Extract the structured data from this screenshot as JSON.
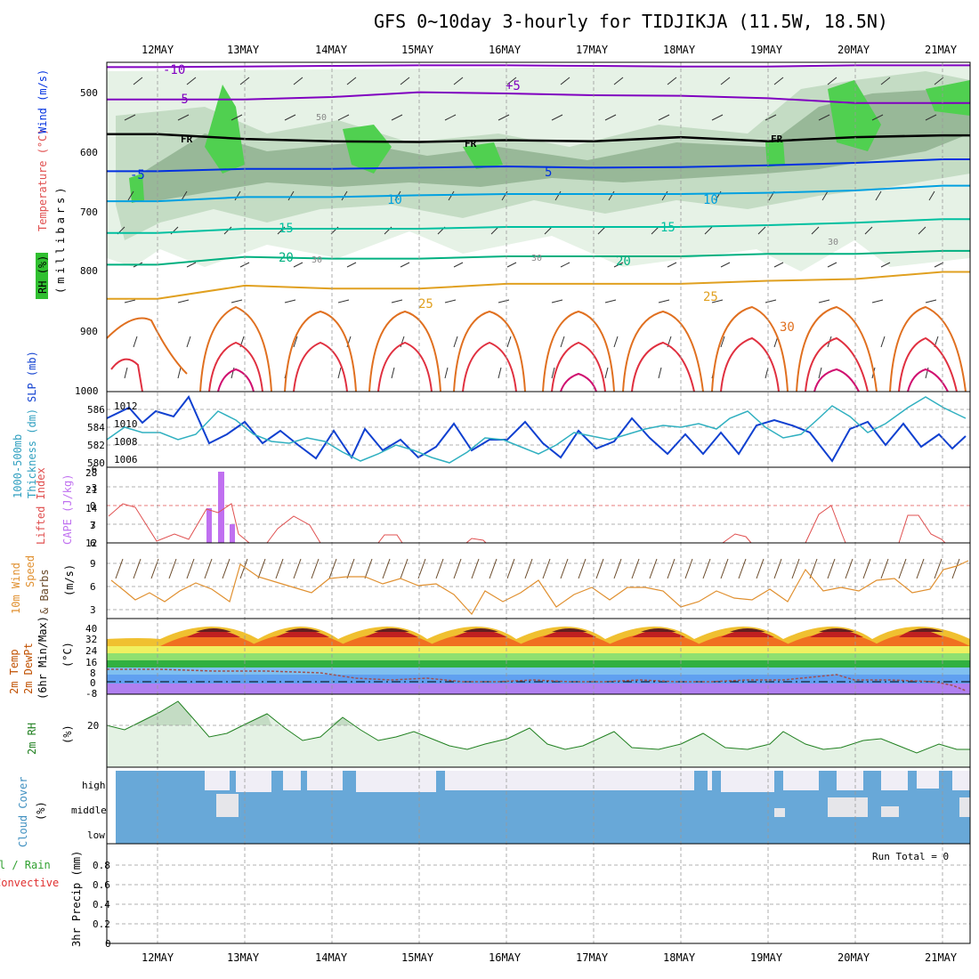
{
  "title": "GFS 0~10day 3-hourly for TIDJIKJA (11.5W, 18.5N)",
  "dates": [
    "12MAY",
    "13MAY",
    "14MAY",
    "15MAY",
    "16MAY",
    "17MAY",
    "18MAY",
    "19MAY",
    "20MAY",
    "21MAY"
  ],
  "panels": {
    "upper": {
      "axis_labels": [
        "Wind (m/s)",
        "Temperature (°C)",
        "RH (%)",
        "(millibars)"
      ],
      "pressure_ticks": [
        500,
        600,
        700,
        800,
        900,
        1000
      ],
      "isotherm_labels": [
        "-10",
        "-5",
        "+5",
        "-5",
        "5",
        "10",
        "10",
        "15",
        "15",
        "20",
        "20",
        "25",
        "25",
        "30"
      ],
      "freezing_labels": [
        "FR",
        "FR",
        "FR"
      ],
      "rh_labels": [
        "50",
        "30",
        "30",
        "30"
      ]
    },
    "thickness": {
      "axis_labels": [
        "1000-500mb",
        "Thickness (dm)",
        "SLP (mb)"
      ],
      "left_ticks": [
        "586",
        "584",
        "582",
        "580"
      ],
      "right_ticks": [
        "1012",
        "1010",
        "1008",
        "1006"
      ]
    },
    "cape": {
      "axis_labels": [
        "Lifted Index",
        "CAPE (J/kg)"
      ],
      "li_ticks": [
        "-6",
        "-3",
        "0",
        "3",
        "6"
      ],
      "cape_ticks": [
        "28",
        "21",
        "14",
        "7",
        "12"
      ]
    },
    "wind10m": {
      "axis_labels": [
        "10m Wind",
        "Speed",
        "& Barbs",
        "(m/s)"
      ],
      "ticks": [
        "9",
        "6",
        "3"
      ]
    },
    "temp2m": {
      "axis_labels": [
        "2m Temp",
        "2m DewPt",
        "(6hr Min/Max)",
        "(°C)"
      ],
      "ticks": [
        "40",
        "32",
        "24",
        "16",
        "8",
        "0",
        "-8"
      ]
    },
    "rh2m": {
      "axis_labels": [
        "2m RH",
        "(%)"
      ],
      "ticks": [
        "20"
      ]
    },
    "cloud": {
      "axis_labels": [
        "Cloud Cover",
        "(%)"
      ],
      "levels": [
        "high",
        "middle",
        "low"
      ]
    },
    "precip": {
      "axis_labels": [
        "Total / Rain",
        "Convective",
        "3hr Precip (mm)"
      ],
      "ticks": [
        "0.8",
        "0.6",
        "0.4",
        "0.2",
        "0"
      ],
      "run_total": "Run Total = 0"
    }
  },
  "chart_data": [
    {
      "type": "line",
      "name": "upper-air",
      "ylabel": "(millibars)",
      "ylim": [
        1000,
        450
      ],
      "x": [
        "12MAY",
        "13MAY",
        "14MAY",
        "15MAY",
        "16MAY",
        "17MAY",
        "18MAY",
        "19MAY",
        "20MAY",
        "21MAY"
      ],
      "series": [
        {
          "name": "-10",
          "color": "#8000c0",
          "values": [
            458,
            457,
            456,
            455,
            455,
            456,
            457,
            457,
            455,
            455
          ]
        },
        {
          "name": "-5",
          "color": "#8000c0",
          "values": [
            512,
            512,
            508,
            500,
            502,
            505,
            506,
            510,
            518,
            518
          ]
        },
        {
          "name": "FR",
          "color": "#000000",
          "values": [
            570,
            578,
            582,
            583,
            580,
            582,
            575,
            582,
            575,
            572
          ]
        },
        {
          "name": "-5",
          "color": "#0030e0",
          "values": [
            632,
            628,
            628,
            626,
            624,
            626,
            625,
            622,
            618,
            612
          ]
        },
        {
          "name": "10",
          "color": "#00a0e0",
          "values": [
            682,
            675,
            675,
            672,
            670,
            670,
            670,
            668,
            664,
            656
          ]
        },
        {
          "name": "15",
          "color": "#00c0a0",
          "values": [
            735,
            728,
            728,
            728,
            725,
            725,
            725,
            722,
            718,
            712
          ]
        },
        {
          "name": "20",
          "color": "#00b080",
          "values": [
            788,
            775,
            778,
            778,
            774,
            774,
            774,
            770,
            770,
            765
          ]
        },
        {
          "name": "25",
          "color": "#e0a020",
          "values": [
            845,
            823,
            828,
            828,
            820,
            820,
            820,
            815,
            812,
            800
          ]
        }
      ]
    },
    {
      "type": "line",
      "name": "thickness-slp",
      "ylabel": "SLP (mb)",
      "x": [
        "12MAY",
        "13MAY",
        "14MAY",
        "15MAY",
        "16MAY",
        "17MAY",
        "18MAY",
        "19MAY",
        "20MAY",
        "21MAY"
      ],
      "series": [
        {
          "name": "SLP (mb)",
          "color": "#1040d0",
          "values": [
            1011.5,
            1010.5,
            1009.5,
            1008,
            1009,
            1008,
            1008,
            1009.5,
            1009,
            1008.5
          ]
        },
        {
          "name": "1000-500mb Thickness (dm)",
          "color": "#30b0c0",
          "values": [
            583.5,
            584,
            582,
            580.5,
            582,
            582.5,
            583.5,
            584.5,
            585.5,
            586
          ]
        }
      ]
    },
    {
      "type": "bar",
      "name": "cape-li",
      "ylabel": "CAPE (J/kg)",
      "categories": [
        "12MAY 15Z",
        "12MAY 18Z",
        "12MAY 21Z"
      ],
      "values": [
        14,
        24,
        7
      ],
      "li_series": {
        "name": "Lifted Index",
        "x": [
          "11MAY 18Z",
          "12MAY 00Z",
          "12MAY 06Z",
          "12MAY 12Z",
          "12MAY 18Z",
          "13MAY 00Z",
          "13MAY 18Z",
          "14MAY 18Z",
          "15MAY 18Z",
          "18MAY 12Z",
          "19MAY 18Z",
          "20MAY 15Z"
        ],
        "values": [
          1,
          0,
          5.5,
          5,
          1.5,
          0,
          5.7,
          2.5,
          5.5,
          5.5,
          0,
          2
        ]
      }
    },
    {
      "type": "line",
      "name": "10m-wind",
      "ylabel": "(m/s)",
      "ylim": [
        2,
        10
      ],
      "x": [
        "12MAY",
        "13MAY",
        "14MAY",
        "15MAY",
        "16MAY",
        "17MAY",
        "18MAY",
        "19MAY",
        "20MAY",
        "21MAY"
      ],
      "series": [
        {
          "name": "Speed",
          "color": "#e09030",
          "values": [
            5,
            5.5,
            6.5,
            6.5,
            6,
            5,
            4,
            5,
            6,
            7
          ]
        }
      ]
    },
    {
      "type": "area",
      "name": "2m-temp",
      "ylabel": "(°C)",
      "ylim": [
        -8,
        42
      ],
      "x": [
        "12MAY",
        "13MAY",
        "14MAY",
        "15MAY",
        "16MAY",
        "17MAY",
        "18MAY",
        "19MAY",
        "20MAY",
        "21MAY"
      ],
      "series": [
        {
          "name": "Temp max",
          "values": [
            39,
            39,
            38,
            38,
            38,
            38,
            39,
            40,
            40,
            40
          ]
        },
        {
          "name": "Temp min",
          "values": [
            30,
            29,
            29,
            29,
            29,
            29,
            29,
            29,
            29,
            29
          ]
        },
        {
          "name": "DewPt",
          "values": [
            10,
            9,
            8,
            3,
            2,
            2,
            0,
            1,
            3,
            -3
          ]
        }
      ]
    },
    {
      "type": "line",
      "name": "2m-rh",
      "ylabel": "(%)",
      "x": [
        "12MAY",
        "13MAY",
        "14MAY",
        "15MAY",
        "16MAY",
        "17MAY",
        "18MAY",
        "19MAY",
        "20MAY",
        "21MAY"
      ],
      "series": [
        {
          "name": "2m RH",
          "color": "#208020",
          "values": [
            22,
            24,
            22,
            12,
            10,
            9,
            10,
            10,
            8,
            6
          ]
        }
      ]
    }
  ]
}
